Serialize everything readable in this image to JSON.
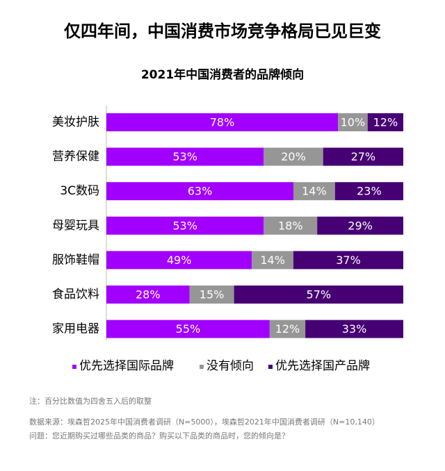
{
  "chart_data": {
    "type": "bar",
    "orientation": "horizontal",
    "stacked": true,
    "title": "仅四年间，中国消费市场竞争格局已见巨变",
    "subtitle": "2021年中国消费者的品牌倾向",
    "categories": [
      "美妆护肤",
      "营养保健",
      "3C数码",
      "母婴玩具",
      "服饰鞋帽",
      "食品饮料",
      "家用电器"
    ],
    "xlim": [
      0,
      100
    ],
    "series": [
      {
        "name": "优先选择国际品牌",
        "color": "#a100ff",
        "values": [
          78,
          53,
          63,
          53,
          49,
          28,
          55
        ],
        "value_labels": [
          "78%",
          "53%",
          "63%",
          "53%",
          "49%",
          "28%",
          "55%"
        ]
      },
      {
        "name": "没有倾向",
        "color": "#969696",
        "values": [
          10,
          20,
          14,
          18,
          14,
          15,
          12
        ],
        "value_labels": [
          "10%",
          "20%",
          "14%",
          "18%",
          "14%",
          "15%",
          "12%"
        ]
      },
      {
        "name": "优先选择国产品牌",
        "color": "#460073",
        "values": [
          12,
          27,
          23,
          29,
          37,
          57,
          33
        ],
        "value_labels": [
          "12%",
          "27%",
          "23%",
          "29%",
          "37%",
          "57%",
          "33%"
        ]
      }
    ],
    "notes": [
      "注：百分比数值为四舍五入后的取整",
      "数据来源：埃森哲2025年中国消费者调研（N=5000），埃森哲2021年中国消费者调研（N=10,140）",
      "问题：您近期购买过哪些品类的商品？购买以下品类的商品时，您的倾向是？"
    ]
  }
}
